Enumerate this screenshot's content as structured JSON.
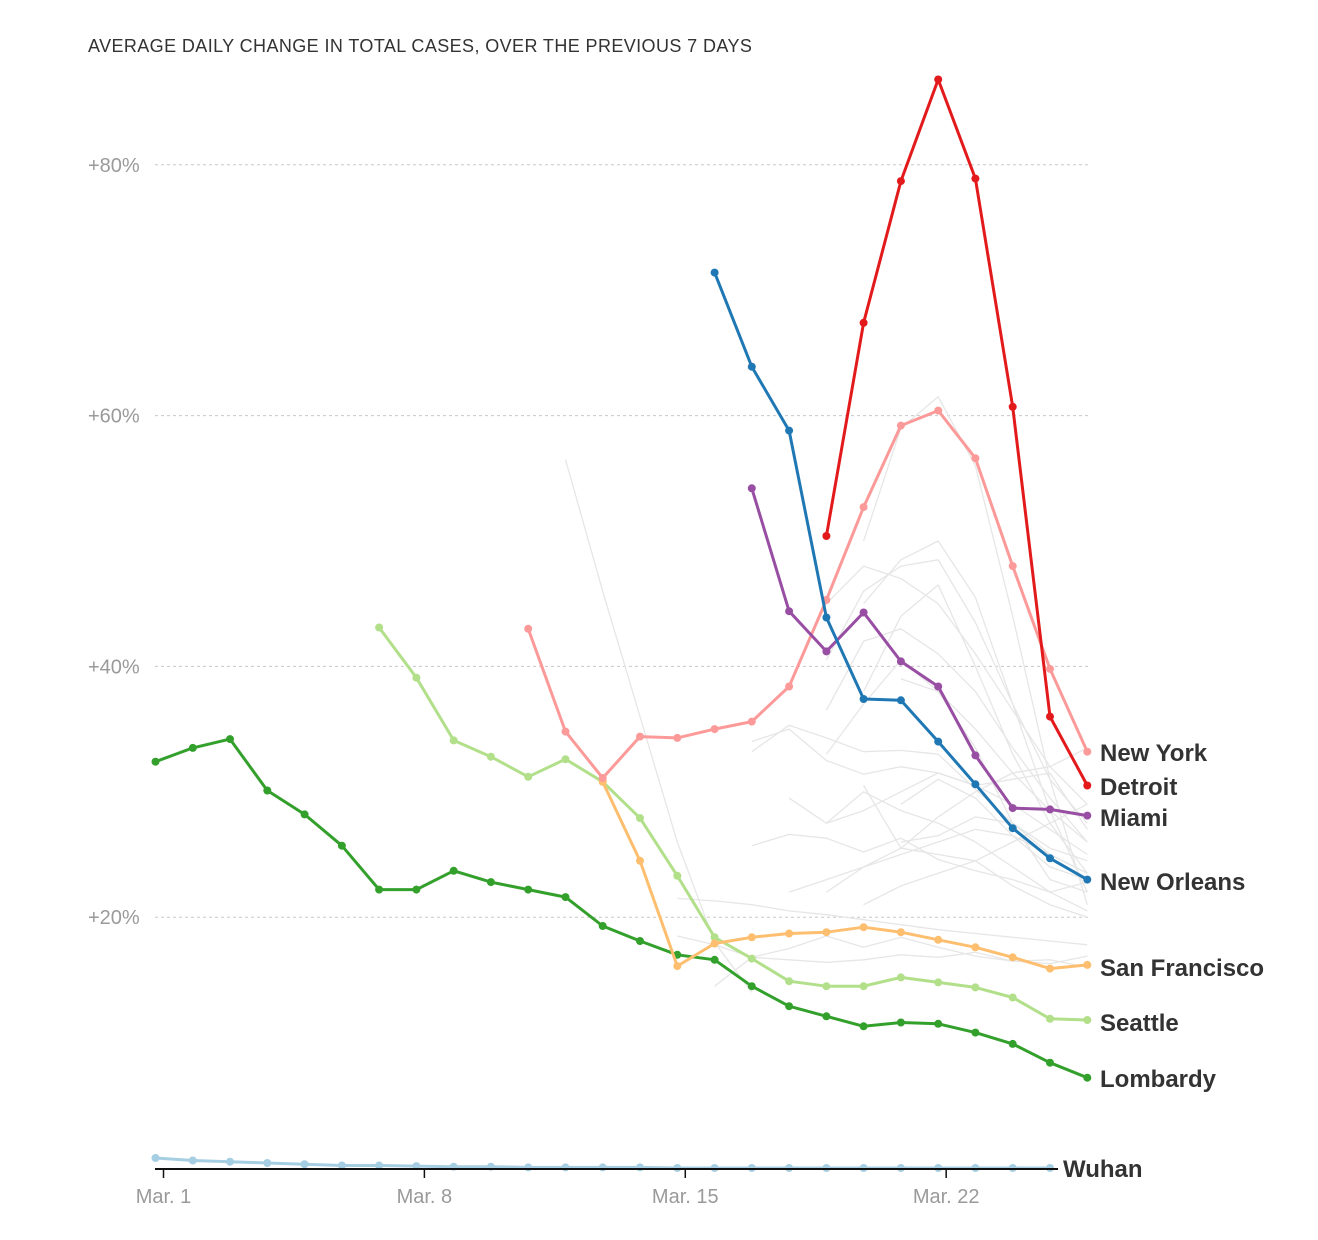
{
  "chart_data": {
    "type": "line",
    "title": "AVERAGE DAILY CHANGE IN TOTAL CASES, OVER THE PREVIOUS 7 DAYS",
    "xlabel": "",
    "ylabel": "",
    "x_start": "Mar. 1",
    "x_ticks": [
      {
        "day": 1,
        "label": "Mar. 1"
      },
      {
        "day": 8,
        "label": "Mar. 8"
      },
      {
        "day": 15,
        "label": "Mar. 15"
      },
      {
        "day": 22,
        "label": "Mar. 22"
      }
    ],
    "y_ticks": [
      {
        "value": 20,
        "label": "+20%"
      },
      {
        "value": 40,
        "label": "+40%"
      },
      {
        "value": 60,
        "label": "+60%"
      },
      {
        "value": 80,
        "label": "+80%"
      }
    ],
    "xlim": [
      1,
      26.2
    ],
    "ylim": [
      0,
      86
    ],
    "grid": true,
    "series": [
      {
        "name": "Wuhan",
        "color": "#a6cee3",
        "start_day": 1,
        "values": [
          0.8,
          0.6,
          0.5,
          0.4,
          0.3,
          0.2,
          0.2,
          0.15,
          0.1,
          0.1,
          0.05,
          0.05,
          0.05,
          0.05,
          0.0,
          0.0,
          0.0,
          0.0,
          0.0,
          0.0,
          0.0,
          0.0,
          0.0,
          0.0,
          0.0
        ]
      },
      {
        "name": "Lombardy",
        "color": "#33a02c",
        "start_day": 1,
        "values": [
          32.4,
          33.5,
          34.2,
          30.1,
          28.2,
          25.7,
          22.2,
          22.2,
          23.7,
          22.8,
          22.2,
          21.6,
          19.3,
          18.1,
          17.0,
          16.6,
          14.5,
          12.9,
          12.1,
          11.3,
          11.6,
          11.5,
          10.8,
          9.9,
          8.4,
          7.2
        ]
      },
      {
        "name": "Seattle",
        "color": "#b2df8a",
        "start_day": 7,
        "values": [
          43.1,
          39.1,
          34.1,
          32.8,
          31.2,
          32.6,
          30.8,
          27.9,
          23.3,
          18.4,
          16.7,
          14.9,
          14.5,
          14.5,
          15.2,
          14.8,
          14.4,
          13.6,
          11.9,
          11.8
        ]
      },
      {
        "name": "San Francisco",
        "color": "#fdbf6f",
        "start_day": 13,
        "values": [
          30.8,
          24.5,
          16.1,
          17.9,
          18.4,
          18.7,
          18.8,
          19.2,
          18.8,
          18.2,
          17.6,
          16.8,
          15.9,
          16.2
        ]
      },
      {
        "name": "New York",
        "color": "#fb9a99",
        "start_day": 11,
        "values": [
          43.0,
          34.8,
          31.1,
          34.4,
          34.3,
          35.0,
          35.6,
          38.4,
          45.3,
          52.7,
          59.2,
          60.4,
          56.6,
          48.0,
          39.8,
          33.2
        ]
      },
      {
        "name": "Miami",
        "color": "#984ea3",
        "start_day": 17,
        "values": [
          54.2,
          44.4,
          41.2,
          44.3,
          40.4,
          38.4,
          32.9,
          28.7,
          28.6,
          28.1
        ]
      },
      {
        "name": "New Orleans",
        "color": "#1f78b4",
        "start_day": 16,
        "values": [
          71.4,
          63.9,
          58.8,
          43.9,
          37.4,
          37.3,
          34.0,
          30.6,
          27.1,
          24.7,
          23.0
        ]
      },
      {
        "name": "Detroit",
        "color": "#e31a1c",
        "start_day": 19,
        "values": [
          50.4,
          67.4,
          78.7,
          86.8,
          78.9,
          60.7,
          36.0,
          30.5
        ]
      }
    ],
    "background_series_color": "#e6e6e6",
    "background_series": [
      {
        "start_day": 12,
        "values": [
          56.5,
          46.0,
          36.0,
          26.0,
          18.0,
          14.0
        ]
      },
      {
        "start_day": 15,
        "values": [
          21.5,
          21.3,
          21.0,
          20.5,
          20.2,
          19.8,
          19.4,
          19.0,
          18.7,
          18.4,
          18.1,
          17.8
        ]
      },
      {
        "start_day": 15,
        "values": [
          18.5,
          17.8,
          16.8,
          16.6,
          16.4,
          16.6,
          17.0,
          16.8,
          17.2,
          16.5,
          16.3,
          16.9
        ]
      },
      {
        "start_day": 16,
        "values": [
          14.5,
          16.8,
          17.5,
          18.5,
          17.6,
          18.4,
          17.6,
          16.9,
          16.5,
          16.6,
          16.0
        ]
      },
      {
        "start_day": 17,
        "values": [
          25.7,
          26.6,
          26.3,
          25.2,
          26.3,
          24.6,
          23.7,
          23.0,
          22.0,
          22.8
        ]
      },
      {
        "start_day": 17,
        "values": [
          33.2,
          35.3,
          34.3,
          33.2,
          33.3,
          33.0,
          30.2,
          27.5,
          25.0,
          23.5
        ]
      },
      {
        "start_day": 17,
        "values": [
          34.0,
          35.0,
          32.5,
          31.4,
          32.0,
          31.5,
          30.5,
          31.0,
          31.5,
          27.0
        ]
      },
      {
        "start_day": 18,
        "values": [
          29.5,
          27.5,
          30.0,
          28.5,
          27.5,
          26.0,
          24.0,
          22.0,
          20.5
        ]
      },
      {
        "start_day": 18,
        "values": [
          22.0,
          23.0,
          24.0,
          25.0,
          26.0,
          27.0,
          26.5,
          25.0,
          23.5
        ]
      },
      {
        "start_day": 19,
        "values": [
          33.0,
          37.0,
          40.5,
          38.0,
          35.0,
          31.5,
          28.5,
          26.0
        ]
      },
      {
        "start_day": 19,
        "values": [
          36.5,
          42.0,
          43.0,
          41.0,
          38.0,
          33.5,
          29.5,
          26.0
        ]
      },
      {
        "start_day": 19,
        "values": [
          22.0,
          24.0,
          25.5,
          28.0,
          30.0,
          31.5,
          32.0,
          33.5
        ]
      },
      {
        "start_day": 19,
        "values": [
          45.0,
          48.0,
          47.0,
          45.0,
          41.0,
          36.5,
          32.0,
          29.0
        ]
      },
      {
        "start_day": 19,
        "values": [
          40.5,
          46.0,
          48.0,
          48.5,
          43.5,
          37.0,
          31.0,
          27.5
        ]
      },
      {
        "start_day": 19,
        "values": [
          27.5,
          28.5,
          30.0,
          31.5,
          30.5,
          29.0,
          27.0,
          25.0
        ]
      },
      {
        "start_day": 20,
        "values": [
          50.0,
          59.0,
          61.5,
          56.0,
          44.0,
          31.0,
          21.0
        ]
      },
      {
        "start_day": 20,
        "values": [
          45.0,
          48.5,
          50.0,
          45.5,
          37.0,
          28.5,
          22.0
        ]
      },
      {
        "start_day": 20,
        "values": [
          38.0,
          44.0,
          46.5,
          40.0,
          33.0,
          27.5,
          23.5
        ]
      },
      {
        "start_day": 20,
        "values": [
          30.5,
          25.5,
          25.0,
          24.5,
          22.5,
          21.0,
          20.0
        ]
      },
      {
        "start_day": 20,
        "values": [
          21.0,
          22.5,
          23.5,
          24.5,
          26.0,
          27.5,
          29.0
        ]
      },
      {
        "start_day": 21,
        "values": [
          39.0,
          38.0,
          33.5,
          27.5,
          23.0,
          22.0
        ]
      },
      {
        "start_day": 21,
        "values": [
          29.0,
          31.0,
          29.5,
          26.5,
          24.0,
          23.0
        ]
      },
      {
        "start_day": 21,
        "values": [
          26.0,
          26.5,
          28.0,
          27.5,
          25.5,
          24.5
        ]
      }
    ]
  }
}
